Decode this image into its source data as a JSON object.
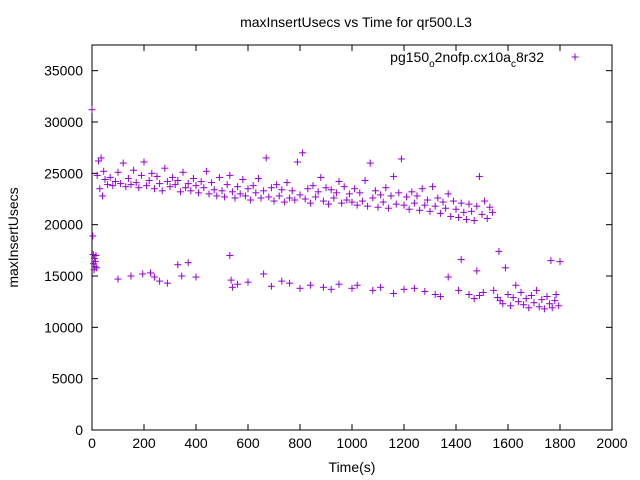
{
  "chart_data": {
    "type": "scatter",
    "title": "maxInsertUsecs vs Time for qr500.L3",
    "xlabel": "Time(s)",
    "ylabel": "maxInsertUsecs",
    "xlim": [
      0,
      2000
    ],
    "ylim": [
      0,
      37500
    ],
    "xticks": [
      "0",
      "200",
      "400",
      "600",
      "800",
      "1000",
      "1200",
      "1400",
      "1600",
      "1800",
      "2000"
    ],
    "yticks": [
      "0",
      "5000",
      "10000",
      "15000",
      "20000",
      "25000",
      "30000",
      "35000"
    ],
    "grid": false,
    "legend_position": "top-right",
    "series": [
      {
        "name": "pg150_o2nofp.cx10a_c8r32",
        "name_parts": {
          "a": "pg150",
          "b": "o",
          "c": "2nofp.cx10a",
          "d": "c",
          "e": "8r32"
        },
        "color": "#9400d3",
        "marker": "+",
        "points": [
          [
            0,
            31200
          ],
          [
            3,
            18900
          ],
          [
            5,
            17100
          ],
          [
            6,
            16200
          ],
          [
            8,
            15600
          ],
          [
            9,
            16700
          ],
          [
            11,
            15900
          ],
          [
            13,
            16400
          ],
          [
            15,
            17000
          ],
          [
            18,
            15800
          ],
          [
            20,
            24800
          ],
          [
            25,
            26200
          ],
          [
            30,
            23500
          ],
          [
            35,
            26500
          ],
          [
            40,
            22800
          ],
          [
            45,
            25200
          ],
          [
            50,
            24400
          ],
          [
            60,
            23900
          ],
          [
            70,
            24600
          ],
          [
            80,
            23800
          ],
          [
            90,
            24200
          ],
          [
            100,
            25100
          ],
          [
            110,
            24000
          ],
          [
            120,
            26000
          ],
          [
            130,
            23700
          ],
          [
            140,
            24500
          ],
          [
            150,
            23900
          ],
          [
            160,
            25300
          ],
          [
            170,
            24100
          ],
          [
            180,
            23600
          ],
          [
            190,
            24800
          ],
          [
            200,
            26100
          ],
          [
            210,
            23800
          ],
          [
            220,
            24300
          ],
          [
            230,
            25000
          ],
          [
            240,
            23500
          ],
          [
            250,
            24700
          ],
          [
            260,
            24000
          ],
          [
            270,
            23300
          ],
          [
            280,
            25500
          ],
          [
            290,
            24200
          ],
          [
            300,
            23700
          ],
          [
            310,
            24600
          ],
          [
            320,
            23900
          ],
          [
            330,
            24300
          ],
          [
            340,
            23200
          ],
          [
            350,
            25100
          ],
          [
            360,
            23600
          ],
          [
            370,
            24000
          ],
          [
            380,
            23300
          ],
          [
            390,
            24500
          ],
          [
            400,
            23800
          ],
          [
            410,
            23100
          ],
          [
            420,
            24200
          ],
          [
            430,
            23600
          ],
          [
            440,
            25200
          ],
          [
            450,
            23000
          ],
          [
            460,
            24100
          ],
          [
            470,
            23400
          ],
          [
            480,
            22800
          ],
          [
            490,
            24600
          ],
          [
            500,
            23300
          ],
          [
            510,
            22700
          ],
          [
            520,
            23900
          ],
          [
            530,
            24800
          ],
          [
            540,
            23200
          ],
          [
            550,
            22600
          ],
          [
            560,
            23700
          ],
          [
            570,
            23000
          ],
          [
            580,
            24400
          ],
          [
            590,
            22800
          ],
          [
            600,
            23500
          ],
          [
            610,
            22400
          ],
          [
            620,
            23800
          ],
          [
            630,
            23100
          ],
          [
            640,
            24500
          ],
          [
            650,
            22600
          ],
          [
            660,
            23300
          ],
          [
            670,
            26500
          ],
          [
            680,
            22700
          ],
          [
            690,
            23600
          ],
          [
            700,
            22300
          ],
          [
            710,
            23900
          ],
          [
            720,
            22800
          ],
          [
            730,
            23400
          ],
          [
            740,
            22200
          ],
          [
            750,
            24100
          ],
          [
            760,
            22600
          ],
          [
            770,
            23300
          ],
          [
            780,
            22400
          ],
          [
            790,
            26100
          ],
          [
            800,
            22900
          ],
          [
            810,
            27000
          ],
          [
            820,
            22500
          ],
          [
            830,
            23500
          ],
          [
            840,
            22100
          ],
          [
            850,
            23800
          ],
          [
            860,
            22700
          ],
          [
            870,
            23200
          ],
          [
            880,
            24600
          ],
          [
            890,
            22300
          ],
          [
            900,
            23600
          ],
          [
            910,
            22000
          ],
          [
            920,
            23400
          ],
          [
            930,
            22600
          ],
          [
            940,
            23100
          ],
          [
            950,
            24200
          ],
          [
            960,
            22100
          ],
          [
            970,
            23700
          ],
          [
            980,
            22400
          ],
          [
            990,
            23000
          ],
          [
            1000,
            22200
          ],
          [
            1010,
            23500
          ],
          [
            1020,
            21900
          ],
          [
            1030,
            23100
          ],
          [
            1040,
            22300
          ],
          [
            1050,
            24300
          ],
          [
            1060,
            21800
          ],
          [
            1070,
            26000
          ],
          [
            1080,
            22600
          ],
          [
            1090,
            23300
          ],
          [
            1100,
            21700
          ],
          [
            1110,
            22900
          ],
          [
            1120,
            22200
          ],
          [
            1130,
            23600
          ],
          [
            1140,
            21600
          ],
          [
            1150,
            22800
          ],
          [
            1160,
            24700
          ],
          [
            1170,
            22000
          ],
          [
            1180,
            23100
          ],
          [
            1190,
            26400
          ],
          [
            1200,
            21900
          ],
          [
            1210,
            22700
          ],
          [
            1220,
            21500
          ],
          [
            1230,
            23200
          ],
          [
            1240,
            22100
          ],
          [
            1250,
            22800
          ],
          [
            1260,
            21400
          ],
          [
            1270,
            23500
          ],
          [
            1280,
            21900
          ],
          [
            1290,
            22400
          ],
          [
            1300,
            21300
          ],
          [
            1310,
            23700
          ],
          [
            1320,
            21800
          ],
          [
            1330,
            22600
          ],
          [
            1340,
            21100
          ],
          [
            1350,
            22200
          ],
          [
            1360,
            21600
          ],
          [
            1370,
            23000
          ],
          [
            1380,
            20800
          ],
          [
            1390,
            22300
          ],
          [
            1400,
            21500
          ],
          [
            1410,
            20700
          ],
          [
            1420,
            22100
          ],
          [
            1430,
            21200
          ],
          [
            1440,
            20500
          ],
          [
            1450,
            22000
          ],
          [
            1460,
            21300
          ],
          [
            1470,
            20400
          ],
          [
            1480,
            21800
          ],
          [
            1490,
            24700
          ],
          [
            1500,
            21000
          ],
          [
            1510,
            22300
          ],
          [
            1520,
            20600
          ],
          [
            1530,
            21700
          ],
          [
            1540,
            21200
          ],
          [
            100,
            14700
          ],
          [
            150,
            15000
          ],
          [
            195,
            15200
          ],
          [
            225,
            15300
          ],
          [
            240,
            14900
          ],
          [
            260,
            14500
          ],
          [
            290,
            14300
          ],
          [
            330,
            16100
          ],
          [
            345,
            15000
          ],
          [
            370,
            16300
          ],
          [
            400,
            14900
          ],
          [
            530,
            17000
          ],
          [
            535,
            14600
          ],
          [
            540,
            13900
          ],
          [
            560,
            14200
          ],
          [
            600,
            14400
          ],
          [
            660,
            15200
          ],
          [
            690,
            14000
          ],
          [
            730,
            14500
          ],
          [
            760,
            14300
          ],
          [
            800,
            13800
          ],
          [
            840,
            14100
          ],
          [
            890,
            13900
          ],
          [
            920,
            13700
          ],
          [
            950,
            14200
          ],
          [
            1000,
            13800
          ],
          [
            1020,
            14100
          ],
          [
            1080,
            13600
          ],
          [
            1110,
            13900
          ],
          [
            1160,
            13300
          ],
          [
            1200,
            13700
          ],
          [
            1240,
            13800
          ],
          [
            1280,
            13500
          ],
          [
            1320,
            13200
          ],
          [
            1340,
            13000
          ],
          [
            1370,
            14900
          ],
          [
            1410,
            13600
          ],
          [
            1420,
            16600
          ],
          [
            1450,
            13200
          ],
          [
            1470,
            12800
          ],
          [
            1480,
            15500
          ],
          [
            1490,
            13100
          ],
          [
            1505,
            13400
          ],
          [
            1545,
            13600
          ],
          [
            1560,
            12900
          ],
          [
            1565,
            17400
          ],
          [
            1570,
            12600
          ],
          [
            1580,
            12300
          ],
          [
            1590,
            15800
          ],
          [
            1600,
            13200
          ],
          [
            1610,
            12100
          ],
          [
            1620,
            12900
          ],
          [
            1630,
            14100
          ],
          [
            1640,
            12500
          ],
          [
            1650,
            13400
          ],
          [
            1660,
            12200
          ],
          [
            1670,
            12800
          ],
          [
            1680,
            11900
          ],
          [
            1690,
            13100
          ],
          [
            1700,
            12400
          ],
          [
            1710,
            13600
          ],
          [
            1720,
            12000
          ],
          [
            1730,
            12700
          ],
          [
            1740,
            11800
          ],
          [
            1750,
            13000
          ],
          [
            1760,
            12300
          ],
          [
            1765,
            16500
          ],
          [
            1770,
            11900
          ],
          [
            1780,
            12600
          ],
          [
            1785,
            13200
          ],
          [
            1795,
            12100
          ],
          [
            1800,
            16400
          ]
        ]
      }
    ]
  }
}
